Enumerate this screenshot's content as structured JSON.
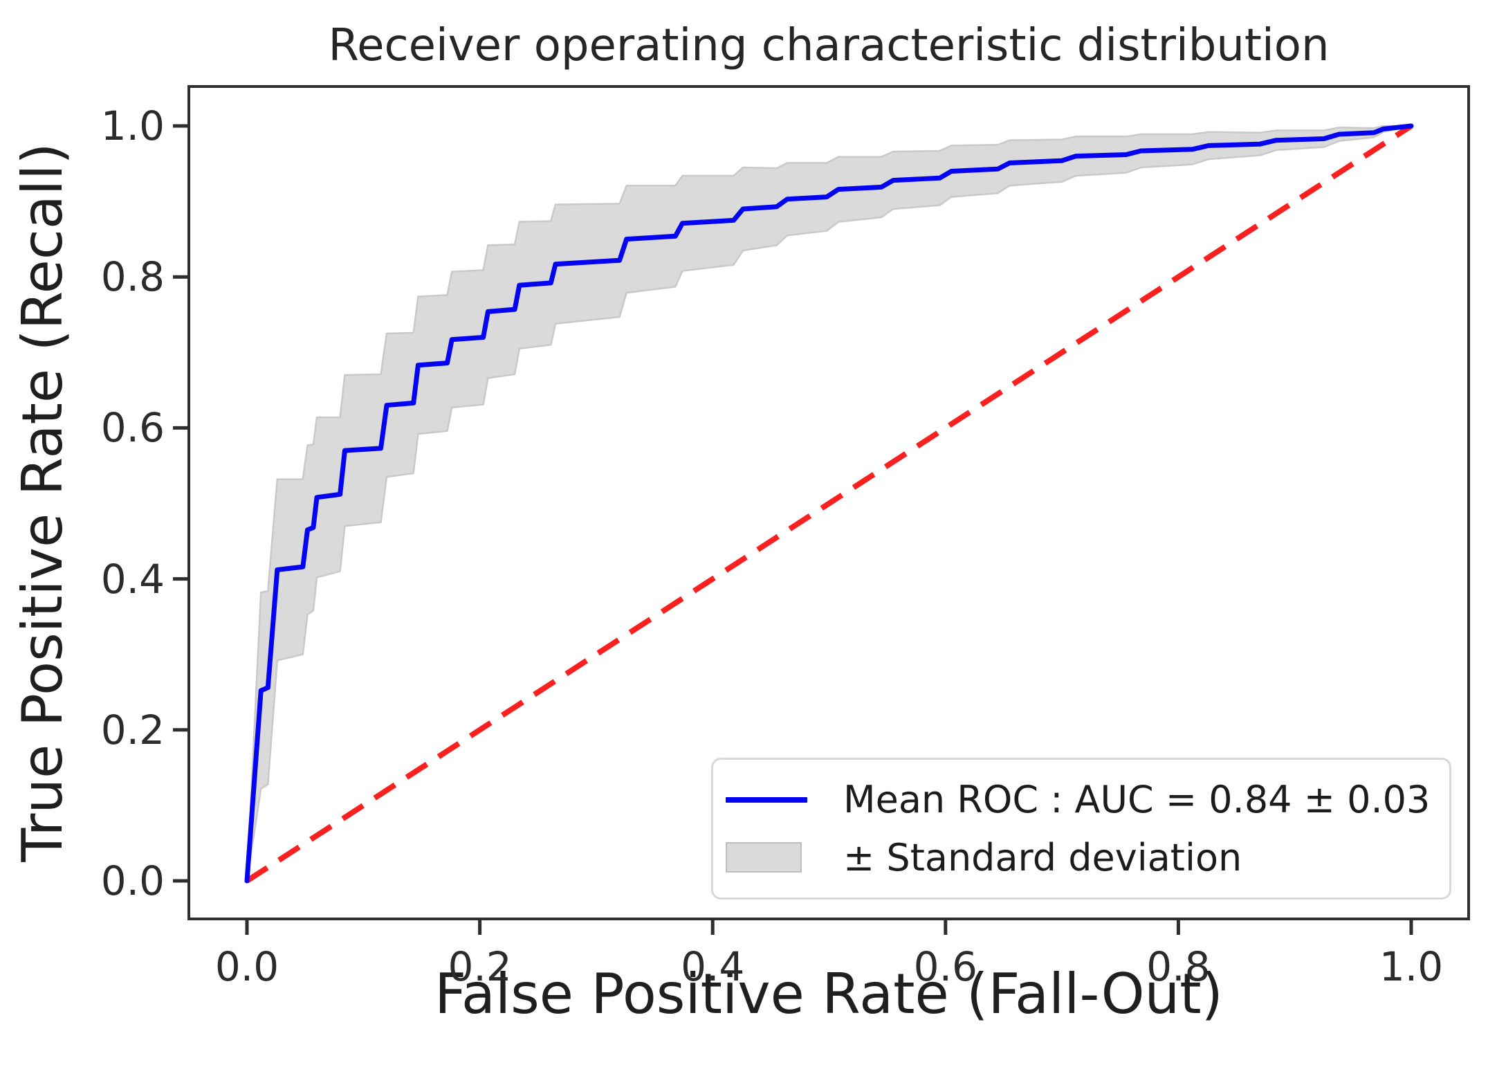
{
  "figure": {
    "title": "Receiver operating characteristic distribution"
  },
  "axes": {
    "xlabel": "False Positive Rate (Fall-Out)",
    "ylabel": "True Positive Rate (Recall)"
  },
  "legend": {
    "mean_roc_label": "Mean ROC : AUC = 0.84 ± 0.03",
    "std_label": "± Standard deviation"
  },
  "colors": {
    "mean_line": "#0404f2",
    "chance_line": "#fa2020",
    "band_fill": "#dadada",
    "band_edge": "#c9c9c9",
    "frame": "#2e2e2e",
    "text": "#262626",
    "background": "#ffffff"
  },
  "chart_data": {
    "type": "line",
    "title": "Receiver operating characteristic distribution",
    "xlabel": "False Positive Rate (Fall-Out)",
    "ylabel": "True Positive Rate (Recall)",
    "xlim": [
      -0.05,
      1.05
    ],
    "ylim": [
      -0.05,
      1.05
    ],
    "xticks": [
      0.0,
      0.2,
      0.4,
      0.6,
      0.8,
      1.0
    ],
    "yticks": [
      0.0,
      0.2,
      0.4,
      0.6,
      0.8,
      1.0
    ],
    "xtick_labels": [
      "0.0",
      "0.2",
      "0.4",
      "0.6",
      "0.8",
      "1.0"
    ],
    "ytick_labels": [
      "0.0",
      "0.2",
      "0.4",
      "0.6",
      "0.8",
      "1.0"
    ],
    "grid": false,
    "legend_position": "lower right",
    "series": [
      {
        "name": "mean_roc",
        "label": "Mean ROC : AUC = 0.84 ± 0.03",
        "style": "solid-step",
        "color": "#0404f2",
        "auc": 0.84,
        "auc_std": 0.03,
        "points_fpr_tpr_std": [
          [
            0.0,
            0.0,
            0.0
          ],
          [
            0.012,
            0.252,
            0.13
          ],
          [
            0.018,
            0.256,
            0.128
          ],
          [
            0.026,
            0.412,
            0.12
          ],
          [
            0.048,
            0.416,
            0.116
          ],
          [
            0.052,
            0.465,
            0.112
          ],
          [
            0.057,
            0.468,
            0.11
          ],
          [
            0.06,
            0.508,
            0.106
          ],
          [
            0.08,
            0.512,
            0.102
          ],
          [
            0.084,
            0.57,
            0.1
          ],
          [
            0.115,
            0.573,
            0.098
          ],
          [
            0.12,
            0.63,
            0.095
          ],
          [
            0.143,
            0.633,
            0.093
          ],
          [
            0.147,
            0.683,
            0.091
          ],
          [
            0.172,
            0.686,
            0.09
          ],
          [
            0.176,
            0.717,
            0.09
          ],
          [
            0.203,
            0.72,
            0.089
          ],
          [
            0.207,
            0.754,
            0.088
          ],
          [
            0.23,
            0.757,
            0.086
          ],
          [
            0.234,
            0.789,
            0.084
          ],
          [
            0.261,
            0.792,
            0.082
          ],
          [
            0.265,
            0.817,
            0.079
          ],
          [
            0.32,
            0.822,
            0.075
          ],
          [
            0.326,
            0.85,
            0.071
          ],
          [
            0.368,
            0.854,
            0.067
          ],
          [
            0.374,
            0.871,
            0.063
          ],
          [
            0.418,
            0.875,
            0.059
          ],
          [
            0.426,
            0.89,
            0.055
          ],
          [
            0.455,
            0.893,
            0.051
          ],
          [
            0.464,
            0.903,
            0.048
          ],
          [
            0.498,
            0.906,
            0.045
          ],
          [
            0.508,
            0.916,
            0.043
          ],
          [
            0.545,
            0.919,
            0.04
          ],
          [
            0.555,
            0.928,
            0.038
          ],
          [
            0.595,
            0.931,
            0.036
          ],
          [
            0.605,
            0.94,
            0.034
          ],
          [
            0.645,
            0.943,
            0.032
          ],
          [
            0.655,
            0.951,
            0.03
          ],
          [
            0.7,
            0.954,
            0.028
          ],
          [
            0.712,
            0.96,
            0.026
          ],
          [
            0.755,
            0.962,
            0.024
          ],
          [
            0.768,
            0.967,
            0.022
          ],
          [
            0.812,
            0.969,
            0.02
          ],
          [
            0.826,
            0.974,
            0.018
          ],
          [
            0.87,
            0.976,
            0.015
          ],
          [
            0.884,
            0.981,
            0.013
          ],
          [
            0.925,
            0.983,
            0.011
          ],
          [
            0.938,
            0.989,
            0.009
          ],
          [
            0.968,
            0.991,
            0.006
          ],
          [
            0.976,
            0.996,
            0.004
          ],
          [
            1.0,
            1.0,
            0.0
          ]
        ]
      },
      {
        "name": "chance_diagonal",
        "style": "dashed",
        "color": "#fa2020",
        "points": [
          [
            0.0,
            0.0
          ],
          [
            1.0,
            1.0
          ]
        ]
      }
    ],
    "band": {
      "name": "std_band",
      "label": "± Standard deviation",
      "fill": "#dadada",
      "edge": "#c9c9c9"
    }
  }
}
